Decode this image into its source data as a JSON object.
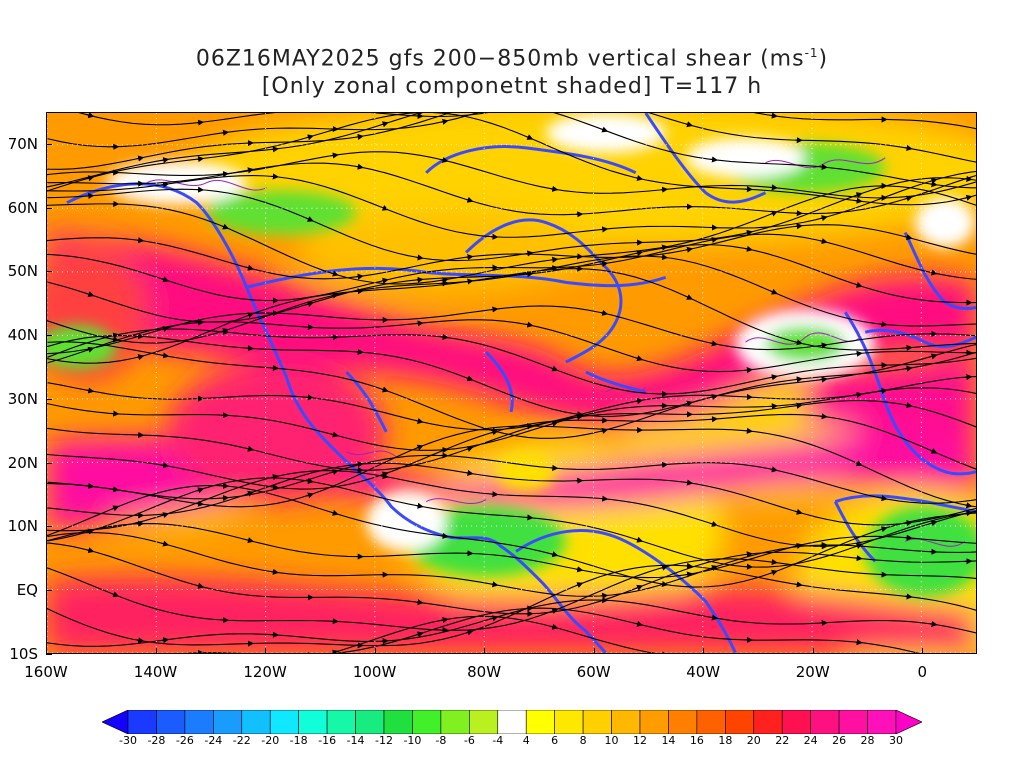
{
  "title": {
    "line1_prefix": "06Z16MAY2025 gfs 200−850mb vertical shear (ms",
    "line1_sup": "-1",
    "line1_suffix": ")",
    "line2": "[Only zonal componetnt shaded] T=117 h"
  },
  "map": {
    "projection": "lat-lon",
    "lon_range": [
      -160,
      10
    ],
    "lat_range": [
      -10,
      75
    ],
    "lat_labels": [
      "70N",
      "60N",
      "50N",
      "40N",
      "30N",
      "20N",
      "10N",
      "EQ",
      "10S"
    ],
    "lat_values": [
      70,
      60,
      50,
      40,
      30,
      20,
      10,
      0,
      -10
    ],
    "lon_labels": [
      "160W",
      "140W",
      "120W",
      "100W",
      "80W",
      "60W",
      "40W",
      "20W",
      "0"
    ],
    "lon_values": [
      -160,
      -140,
      -120,
      -100,
      -80,
      -60,
      -40,
      -20,
      0
    ],
    "coastline_color": "#3a4bff",
    "contour_color": "#a020c0",
    "streamline_color": "#000000",
    "grid": "dotted"
  },
  "colorbar": {
    "levels": [
      "-30",
      "-28",
      "-26",
      "-24",
      "-22",
      "-20",
      "-18",
      "-16",
      "-14",
      "-12",
      "-10",
      "-8",
      "-6",
      "-4",
      "4",
      "6",
      "8",
      "10",
      "12",
      "14",
      "16",
      "18",
      "20",
      "22",
      "24",
      "26",
      "28",
      "30"
    ],
    "colors": [
      "#1400ff",
      "#1a3aff",
      "#1a5cff",
      "#1c7cff",
      "#1a9cff",
      "#12c0ff",
      "#10e8ff",
      "#10ffd8",
      "#14f8a8",
      "#18ec80",
      "#20e040",
      "#40f028",
      "#80f020",
      "#b8f020",
      "#ffffff",
      "#ffff00",
      "#ffe800",
      "#ffd000",
      "#ffb800",
      "#ff9c00",
      "#ff8000",
      "#ff6000",
      "#ff4400",
      "#ff2020",
      "#ff1050",
      "#ff1080",
      "#ff10a0",
      "#ff10b8",
      "#ff00c8"
    ]
  }
}
